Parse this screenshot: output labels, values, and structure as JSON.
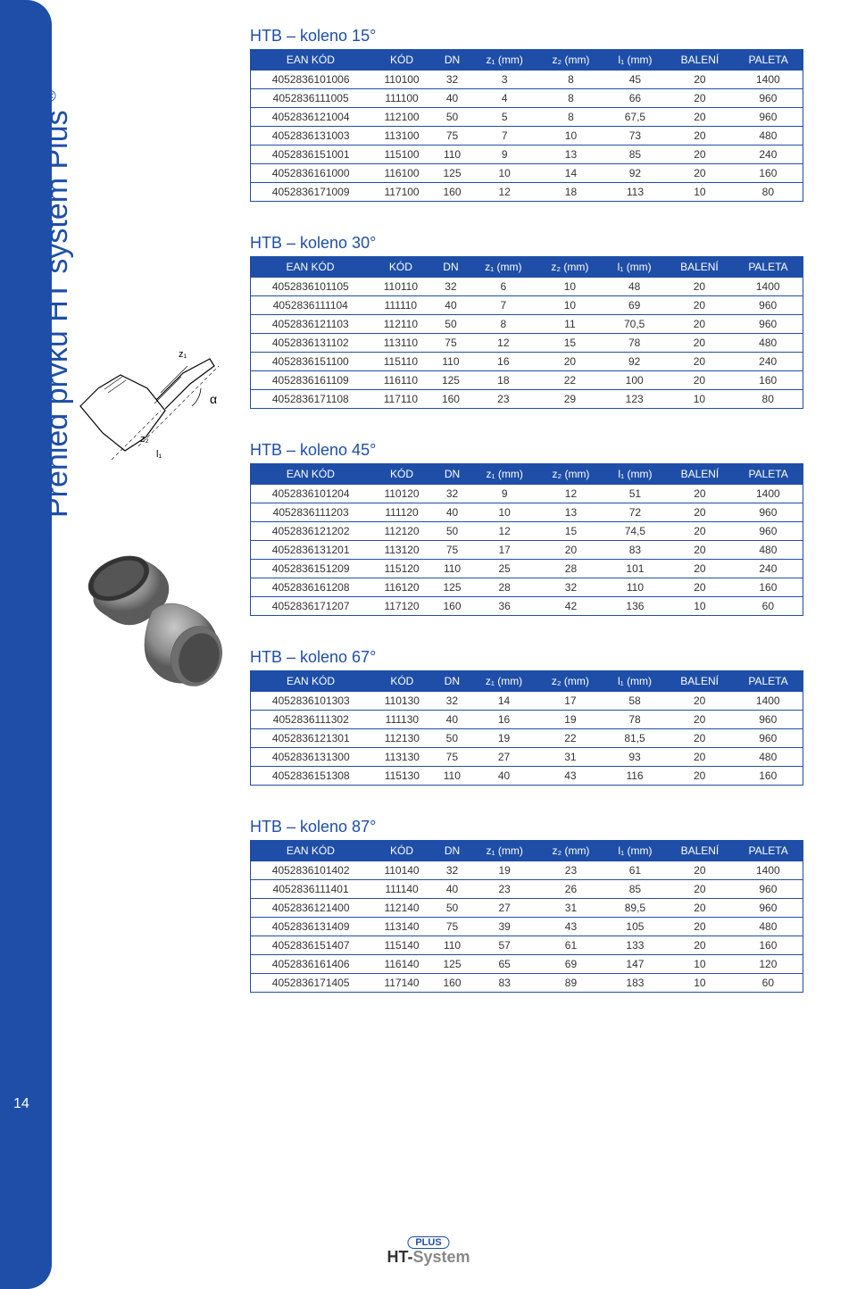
{
  "sidebar_label": "Přehled prvků HT systém Plus",
  "page_number": "14",
  "logo": {
    "plus": "PLUS",
    "ht": "HT-System"
  },
  "columns": [
    "EAN KÓD",
    "KÓD",
    "DN",
    "z₁ (mm)",
    "z₂ (mm)",
    "l₁ (mm)",
    "BALENÍ",
    "PALETA"
  ],
  "tables": [
    {
      "title": "HTB – koleno 15°",
      "rows": [
        [
          "4052836101006",
          "110100",
          "32",
          "3",
          "8",
          "45",
          "20",
          "1400"
        ],
        [
          "4052836111005",
          "111100",
          "40",
          "4",
          "8",
          "66",
          "20",
          "960"
        ],
        [
          "4052836121004",
          "112100",
          "50",
          "5",
          "8",
          "67,5",
          "20",
          "960"
        ],
        [
          "4052836131003",
          "113100",
          "75",
          "7",
          "10",
          "73",
          "20",
          "480"
        ],
        [
          "4052836151001",
          "115100",
          "110",
          "9",
          "13",
          "85",
          "20",
          "240"
        ],
        [
          "4052836161000",
          "116100",
          "125",
          "10",
          "14",
          "92",
          "20",
          "160"
        ],
        [
          "4052836171009",
          "117100",
          "160",
          "12",
          "18",
          "113",
          "10",
          "80"
        ]
      ]
    },
    {
      "title": "HTB – koleno 30°",
      "rows": [
        [
          "4052836101105",
          "110110",
          "32",
          "6",
          "10",
          "48",
          "20",
          "1400"
        ],
        [
          "4052836111104",
          "111110",
          "40",
          "7",
          "10",
          "69",
          "20",
          "960"
        ],
        [
          "4052836121103",
          "112110",
          "50",
          "8",
          "11",
          "70,5",
          "20",
          "960"
        ],
        [
          "4052836131102",
          "113110",
          "75",
          "12",
          "15",
          "78",
          "20",
          "480"
        ],
        [
          "4052836151100",
          "115110",
          "110",
          "16",
          "20",
          "92",
          "20",
          "240"
        ],
        [
          "4052836161109",
          "116110",
          "125",
          "18",
          "22",
          "100",
          "20",
          "160"
        ],
        [
          "4052836171108",
          "117110",
          "160",
          "23",
          "29",
          "123",
          "10",
          "80"
        ]
      ]
    },
    {
      "title": "HTB – koleno 45°",
      "rows": [
        [
          "4052836101204",
          "110120",
          "32",
          "9",
          "12",
          "51",
          "20",
          "1400"
        ],
        [
          "4052836111203",
          "111120",
          "40",
          "10",
          "13",
          "72",
          "20",
          "960"
        ],
        [
          "4052836121202",
          "112120",
          "50",
          "12",
          "15",
          "74,5",
          "20",
          "960"
        ],
        [
          "4052836131201",
          "113120",
          "75",
          "17",
          "20",
          "83",
          "20",
          "480"
        ],
        [
          "4052836151209",
          "115120",
          "110",
          "25",
          "28",
          "101",
          "20",
          "240"
        ],
        [
          "4052836161208",
          "116120",
          "125",
          "28",
          "32",
          "110",
          "20",
          "160"
        ],
        [
          "4052836171207",
          "117120",
          "160",
          "36",
          "42",
          "136",
          "10",
          "60"
        ]
      ]
    },
    {
      "title": "HTB – koleno 67°",
      "rows": [
        [
          "4052836101303",
          "110130",
          "32",
          "14",
          "17",
          "58",
          "20",
          "1400"
        ],
        [
          "4052836111302",
          "111130",
          "40",
          "16",
          "19",
          "78",
          "20",
          "960"
        ],
        [
          "4052836121301",
          "112130",
          "50",
          "19",
          "22",
          "81,5",
          "20",
          "960"
        ],
        [
          "4052836131300",
          "113130",
          "75",
          "27",
          "31",
          "93",
          "20",
          "480"
        ],
        [
          "4052836151308",
          "115130",
          "110",
          "40",
          "43",
          "116",
          "20",
          "160"
        ]
      ]
    },
    {
      "title": "HTB – koleno 87°",
      "rows": [
        [
          "4052836101402",
          "110140",
          "32",
          "19",
          "23",
          "61",
          "20",
          "1400"
        ],
        [
          "4052836111401",
          "111140",
          "40",
          "23",
          "26",
          "85",
          "20",
          "960"
        ],
        [
          "4052836121400",
          "112140",
          "50",
          "27",
          "31",
          "89,5",
          "20",
          "960"
        ],
        [
          "4052836131409",
          "113140",
          "75",
          "39",
          "43",
          "105",
          "20",
          "480"
        ],
        [
          "4052836151407",
          "115140",
          "110",
          "57",
          "61",
          "133",
          "20",
          "160"
        ],
        [
          "4052836161406",
          "116140",
          "125",
          "65",
          "69",
          "147",
          "10",
          "120"
        ],
        [
          "4052836171405",
          "117140",
          "160",
          "83",
          "89",
          "183",
          "10",
          "60"
        ]
      ]
    }
  ],
  "diagram_labels": {
    "z1": "z₁",
    "z2": "z₂",
    "l1": "l₁",
    "alpha": "α"
  }
}
